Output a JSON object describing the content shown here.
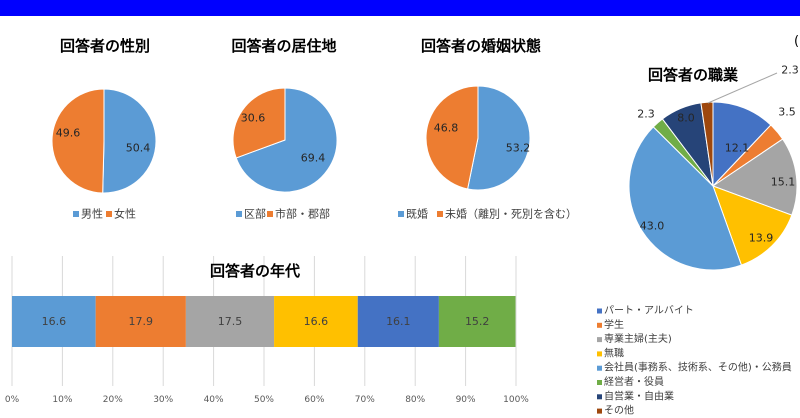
{
  "page": {
    "header_bar_color": "#0000FF",
    "corner_fragment": "("
  },
  "chart_data": [
    {
      "type": "pie",
      "title": "回答者の性別",
      "categories": [
        "男性",
        "女性"
      ],
      "values": [
        50.4,
        49.6
      ],
      "colors": [
        "#5B9BD5",
        "#ED7D31"
      ],
      "legend": "bottom",
      "start": "top",
      "direction": "clockwise"
    },
    {
      "type": "pie",
      "title": "回答者の居住地",
      "categories": [
        "区部",
        "市部・郡部"
      ],
      "values": [
        69.4,
        30.6
      ],
      "colors": [
        "#5B9BD5",
        "#ED7D31"
      ],
      "legend": "bottom",
      "start": "top",
      "direction": "clockwise"
    },
    {
      "type": "pie",
      "title": "回答者の婚姻状態",
      "categories": [
        "既婚",
        "未婚（離別・死別を含む）"
      ],
      "values": [
        53.2,
        46.8
      ],
      "colors": [
        "#5B9BD5",
        "#ED7D31"
      ],
      "legend": "bottom",
      "start": "top",
      "direction": "clockwise"
    },
    {
      "type": "pie",
      "title": "回答者の職業",
      "categories": [
        "パート・アルバイト",
        "学生",
        "専業主婦(主夫)",
        "無職",
        "会社員(事務系、技術系、その他)・公務員",
        "経営者・役員",
        "自営業・自由業",
        "その他"
      ],
      "values": [
        12.1,
        3.5,
        15.1,
        13.9,
        43.0,
        2.3,
        8.0,
        2.3
      ],
      "colors": [
        "#4472C4",
        "#ED7D31",
        "#A5A5A5",
        "#FFC000",
        "#5B9BD5",
        "#70AD47",
        "#264478",
        "#9E480E"
      ],
      "legend": "bottom",
      "start": "top",
      "direction": "clockwise"
    },
    {
      "type": "bar",
      "orientation": "horizontal",
      "stacked": true,
      "title": "回答者の年代",
      "values": [
        16.6,
        17.9,
        17.5,
        16.6,
        16.1,
        15.2
      ],
      "colors": [
        "#5B9BD5",
        "#ED7D31",
        "#A5A5A5",
        "#FFC000",
        "#4472C4",
        "#70AD47"
      ],
      "xlim": [
        0,
        100
      ],
      "xticks": [
        "0%",
        "10%",
        "20%",
        "30%",
        "40%",
        "50%",
        "60%",
        "70%",
        "80%",
        "90%",
        "100%"
      ],
      "grid": true
    }
  ]
}
